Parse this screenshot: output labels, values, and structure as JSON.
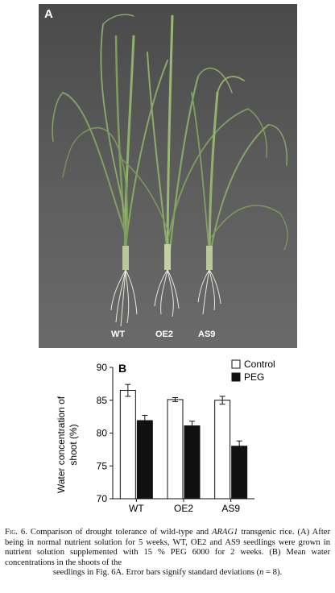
{
  "figure": {
    "panel_a": {
      "letter": "A",
      "plant_labels": [
        "WT",
        "OE2",
        "AS9"
      ]
    },
    "panel_b": {
      "letter": "B"
    }
  },
  "chart_data": {
    "type": "bar",
    "categories": [
      "WT",
      "OE2",
      "AS9"
    ],
    "series": [
      {
        "name": "Control",
        "values": [
          86.5,
          85.1,
          85.0
        ],
        "errors": [
          0.9,
          0.3,
          0.6
        ],
        "color": "#ffffff"
      },
      {
        "name": "PEG",
        "values": [
          81.9,
          81.1,
          78.0
        ],
        "errors": [
          0.8,
          0.7,
          0.8
        ],
        "color": "#111111"
      }
    ],
    "ylabel_lines": [
      "Water concentration of",
      "shoot (%)"
    ],
    "ylim": [
      70,
      90
    ],
    "yticks": [
      70,
      75,
      80,
      85,
      90
    ],
    "grid": false,
    "legend_position": "top-right"
  },
  "caption": {
    "fig_label": "Fig. 6.",
    "text_1": " Comparison of drought tolerance of wild-type and ",
    "gene": "ARAG1",
    "text_2": " transgenic rice. (A) After being in normal nutrient solution for 5 weeks, WT, OE2 and AS9 seedlings were grown in nutrient solution supplemented with 15 % PEG 6000 for 2 weeks. (B) Mean water concentrations in the shoots of the",
    "text_3": "seedlings in Fig. 6A. Error bars signify standard deviations (",
    "n_var": "n",
    "text_4": " = 8)."
  }
}
